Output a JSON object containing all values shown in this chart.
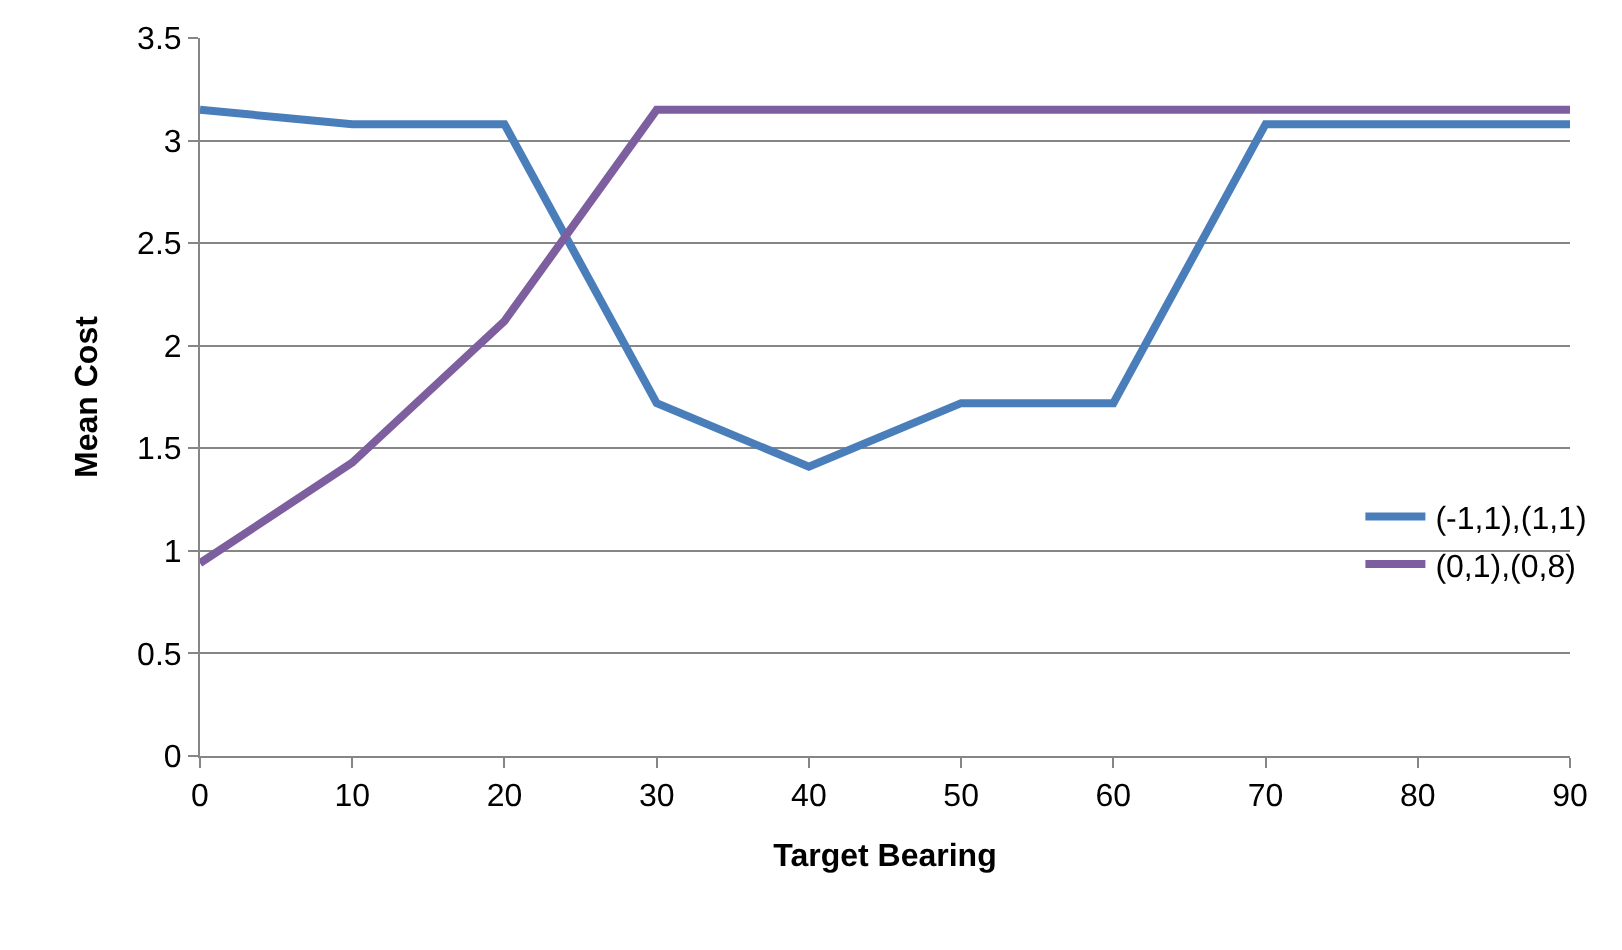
{
  "chart_data": {
    "type": "line",
    "xlabel": "Target Bearing",
    "ylabel": "Mean Cost",
    "x": [
      0,
      10,
      20,
      30,
      40,
      50,
      60,
      70,
      80,
      90
    ],
    "series": [
      {
        "name": "(-1,1),(1,1)",
        "color": "#4a7ebb",
        "values": [
          3.15,
          3.08,
          3.08,
          1.72,
          1.41,
          1.72,
          1.72,
          3.08,
          3.08,
          3.08
        ]
      },
      {
        "name": "(0,1),(0,8)",
        "color": "#7d5fa0",
        "values": [
          0.94,
          1.43,
          2.12,
          3.15,
          3.15,
          3.15,
          3.15,
          3.15,
          3.15,
          3.15
        ]
      }
    ],
    "xlim": [
      0,
      90
    ],
    "xticks": [
      0,
      10,
      20,
      30,
      40,
      50,
      60,
      70,
      80,
      90
    ],
    "ylim": [
      0,
      3.5
    ],
    "yticks": [
      0,
      0.5,
      1,
      1.5,
      2,
      2.5,
      3,
      3.5
    ],
    "grid": "y",
    "legend": "right",
    "marker": "none",
    "line_style": "solid"
  }
}
